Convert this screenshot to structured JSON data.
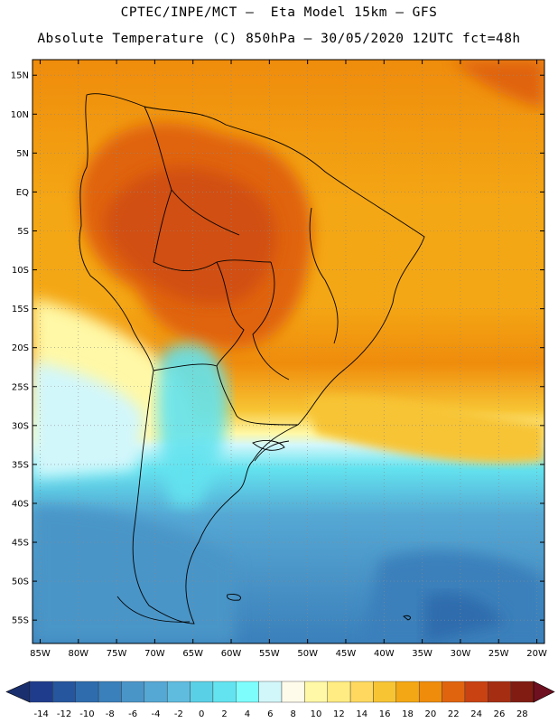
{
  "header": {
    "line1": "CPTEC/INPE/MCT –  Eta Model 15km – GFS",
    "line2": "Absolute Temperature (C) 850hPa – 30/05/2020 12UTC fct=48h"
  },
  "map": {
    "lon_range": [
      -86,
      -19
    ],
    "lat_range": [
      -58,
      17
    ],
    "lat_ticks": [
      {
        "value": 15,
        "label": "15N"
      },
      {
        "value": 10,
        "label": "10N"
      },
      {
        "value": 5,
        "label": "5N"
      },
      {
        "value": 0,
        "label": "EQ"
      },
      {
        "value": -5,
        "label": "5S"
      },
      {
        "value": -10,
        "label": "10S"
      },
      {
        "value": -15,
        "label": "15S"
      },
      {
        "value": -20,
        "label": "20S"
      },
      {
        "value": -25,
        "label": "25S"
      },
      {
        "value": -30,
        "label": "30S"
      },
      {
        "value": -35,
        "label": "35S"
      },
      {
        "value": -40,
        "label": "40S"
      },
      {
        "value": -45,
        "label": "45S"
      },
      {
        "value": -50,
        "label": "50S"
      },
      {
        "value": -55,
        "label": "55S"
      }
    ],
    "lon_ticks": [
      {
        "value": -85,
        "label": "85W"
      },
      {
        "value": -80,
        "label": "80W"
      },
      {
        "value": -75,
        "label": "75W"
      },
      {
        "value": -70,
        "label": "70W"
      },
      {
        "value": -65,
        "label": "65W"
      },
      {
        "value": -60,
        "label": "60W"
      },
      {
        "value": -55,
        "label": "55W"
      },
      {
        "value": -50,
        "label": "50W"
      },
      {
        "value": -45,
        "label": "45W"
      },
      {
        "value": -40,
        "label": "40W"
      },
      {
        "value": -35,
        "label": "35W"
      },
      {
        "value": -30,
        "label": "30W"
      },
      {
        "value": -25,
        "label": "25W"
      },
      {
        "value": -20,
        "label": "20W"
      }
    ]
  },
  "colorbar": {
    "labels": [
      "-14",
      "-12",
      "-10",
      "-8",
      "-6",
      "-4",
      "-2",
      "0",
      "2",
      "4",
      "6",
      "8",
      "10",
      "12",
      "14",
      "16",
      "18",
      "20",
      "22",
      "24",
      "26",
      "28"
    ],
    "colors": [
      "#1f3c8c",
      "#25569e",
      "#2e6cad",
      "#3a80bb",
      "#4a95c8",
      "#55a8d4",
      "#5fbcdf",
      "#5ad0e6",
      "#63e3ef",
      "#7efdfd",
      "#d2f7fb",
      "#fffbea",
      "#fff8a6",
      "#ffec82",
      "#ffd95f",
      "#f7c434",
      "#f4a714",
      "#ef8c0c",
      "#e0640e",
      "#c84212",
      "#a52e12",
      "#801c12"
    ],
    "low_color": "#1a2f6e",
    "high_color": "#6e1020"
  }
}
